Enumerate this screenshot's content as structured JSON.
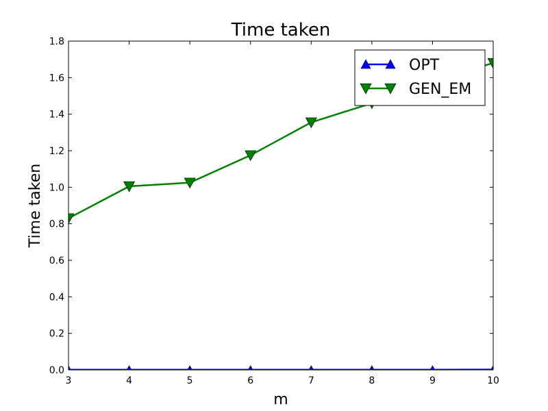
{
  "chart_data": {
    "type": "line",
    "title": "Time taken",
    "xlabel": "m",
    "ylabel": "Time taken",
    "x": [
      3,
      4,
      5,
      6,
      7,
      8,
      9,
      10
    ],
    "xlim": [
      3,
      10
    ],
    "ylim": [
      0,
      1.8
    ],
    "xticks": [
      "3",
      "4",
      "5",
      "6",
      "7",
      "8",
      "9",
      "10"
    ],
    "yticks": [
      "0.0",
      "0.2",
      "0.4",
      "0.6",
      "0.8",
      "1.0",
      "1.2",
      "1.4",
      "1.6",
      "1.8"
    ],
    "grid": false,
    "legend_position": "top-right",
    "series": [
      {
        "name": "OPT",
        "color": "#0000ff",
        "marker": "triangle-up",
        "values": [
          0.001,
          0.001,
          0.001,
          0.001,
          0.001,
          0.001,
          0.001,
          0.002
        ]
      },
      {
        "name": "GEN_EM",
        "color": "#008000",
        "marker": "triangle-down",
        "values": [
          0.83,
          1.005,
          1.025,
          1.175,
          1.355,
          1.46,
          1.58,
          1.68
        ]
      }
    ]
  }
}
